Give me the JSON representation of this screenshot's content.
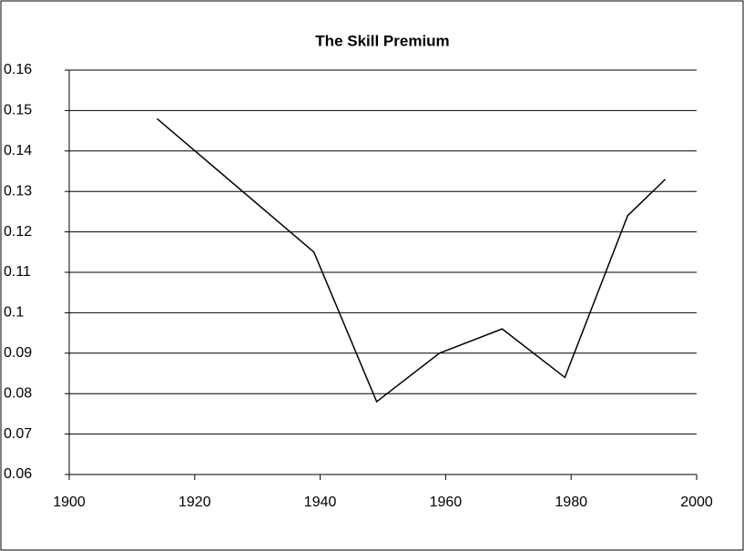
{
  "chart_data": {
    "type": "line",
    "title": "The Skill Premium",
    "x": [
      1914,
      1939,
      1949,
      1959,
      1969,
      1979,
      1989,
      1995
    ],
    "series": [
      {
        "name": "Skill premium",
        "color": "#000000",
        "values": [
          0.148,
          0.115,
          0.078,
          0.09,
          0.096,
          0.084,
          0.124,
          0.133
        ]
      }
    ],
    "xlim": [
      1900,
      2000
    ],
    "xticks": [
      1900,
      1920,
      1940,
      1960,
      1980,
      2000
    ],
    "ylim": [
      0.06,
      0.16
    ],
    "yticks": [
      0.06,
      0.07,
      0.08,
      0.09,
      0.1,
      0.11,
      0.12,
      0.13,
      0.14,
      0.15,
      0.16
    ],
    "grid": true
  }
}
